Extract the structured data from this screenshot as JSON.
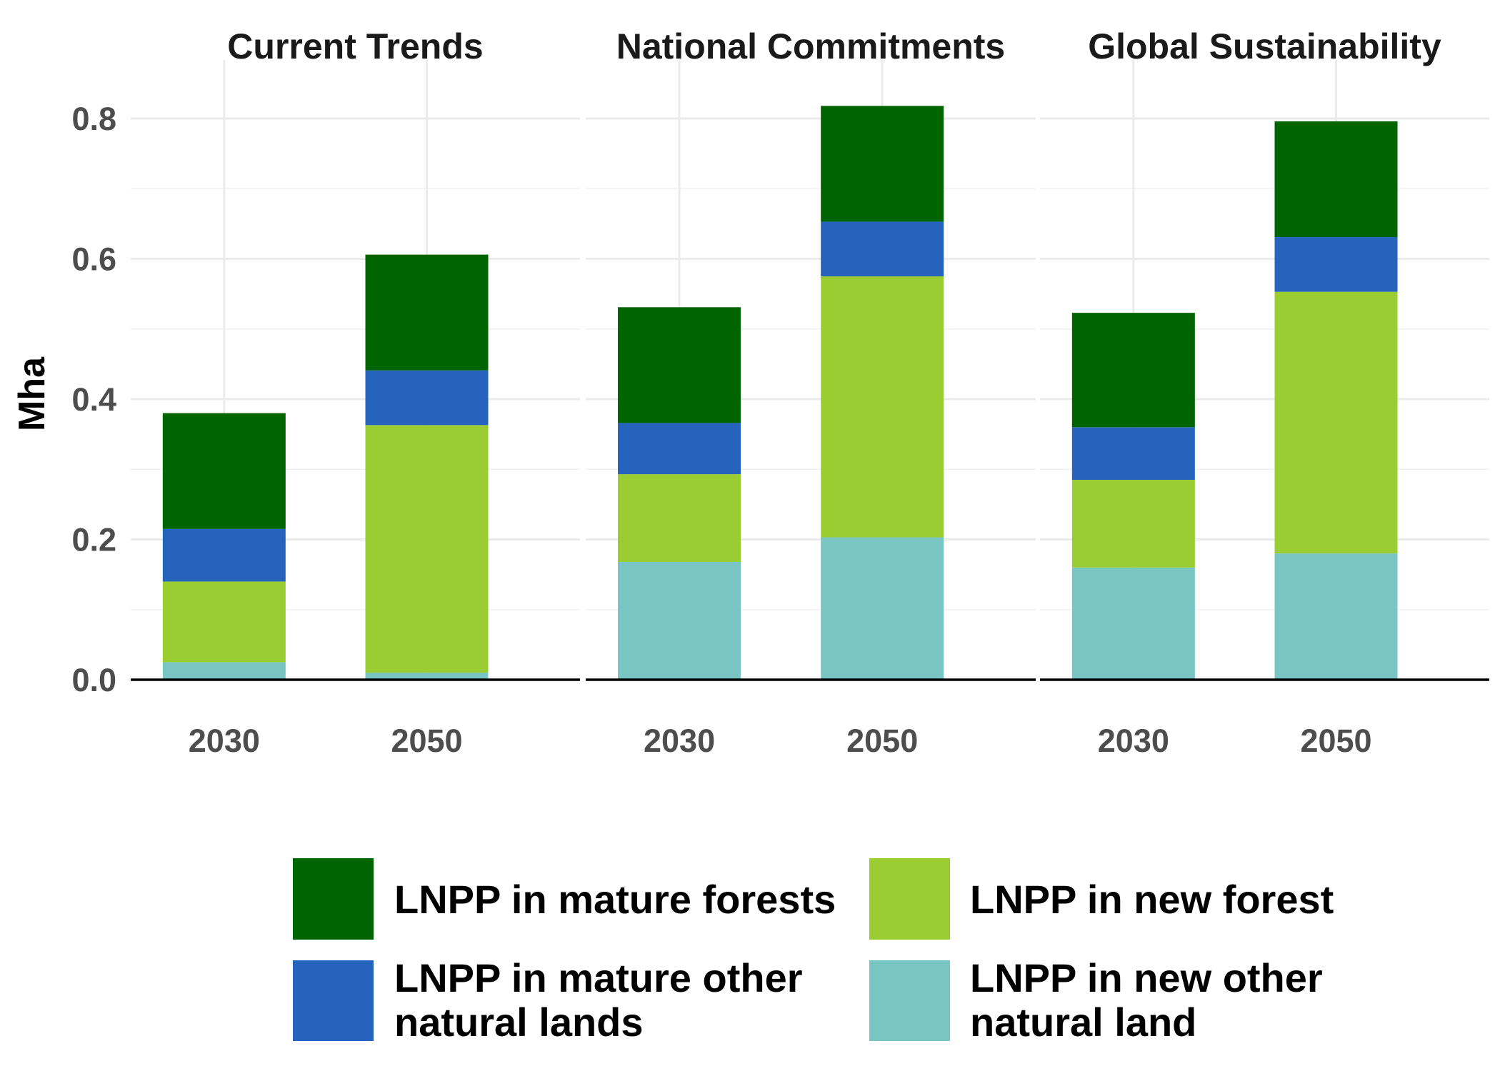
{
  "chart_data": {
    "type": "bar",
    "stacked": true,
    "ylabel": "Mha",
    "xlabel": "",
    "ylim": [
      0,
      0.83
    ],
    "y_ticks": [
      0.0,
      0.2,
      0.4,
      0.6,
      0.8
    ],
    "y_tick_labels": [
      "0.0",
      "0.2",
      "0.4",
      "0.6",
      "0.8"
    ],
    "grid": true,
    "legend_position": "bottom",
    "series": [
      {
        "name": "LNPP in new other natural land",
        "color": "#78C5C4"
      },
      {
        "name": "LNPP in new forest",
        "color": "#9ACD32"
      },
      {
        "name": "LNPP in mature other natural lands",
        "color": "#2563BC"
      },
      {
        "name": "LNPP in mature forests",
        "color": "#006400"
      }
    ],
    "legend_rows": [
      [
        {
          "series": 3,
          "lines": [
            "LNPP in mature forests"
          ]
        },
        {
          "series": 1,
          "lines": [
            "LNPP in new forest"
          ]
        }
      ],
      [
        {
          "series": 2,
          "lines": [
            "LNPP in mature other",
            "natural lands"
          ]
        },
        {
          "series": 0,
          "lines": [
            "LNPP in new other",
            "natural land"
          ]
        }
      ]
    ],
    "facets": [
      {
        "title": "Current Trends",
        "categories": [
          "2030",
          "2050"
        ],
        "values": [
          [
            0.025,
            0.115,
            0.075,
            0.165
          ],
          [
            0.01,
            0.353,
            0.078,
            0.165
          ]
        ]
      },
      {
        "title": "National Commitments",
        "categories": [
          "2030",
          "2050"
        ],
        "values": [
          [
            0.168,
            0.125,
            0.073,
            0.165
          ],
          [
            0.203,
            0.372,
            0.078,
            0.165
          ]
        ]
      },
      {
        "title": "Global Sustainability",
        "categories": [
          "2030",
          "2050"
        ],
        "values": [
          [
            0.16,
            0.125,
            0.075,
            0.163
          ],
          [
            0.18,
            0.373,
            0.078,
            0.165
          ]
        ]
      }
    ]
  }
}
